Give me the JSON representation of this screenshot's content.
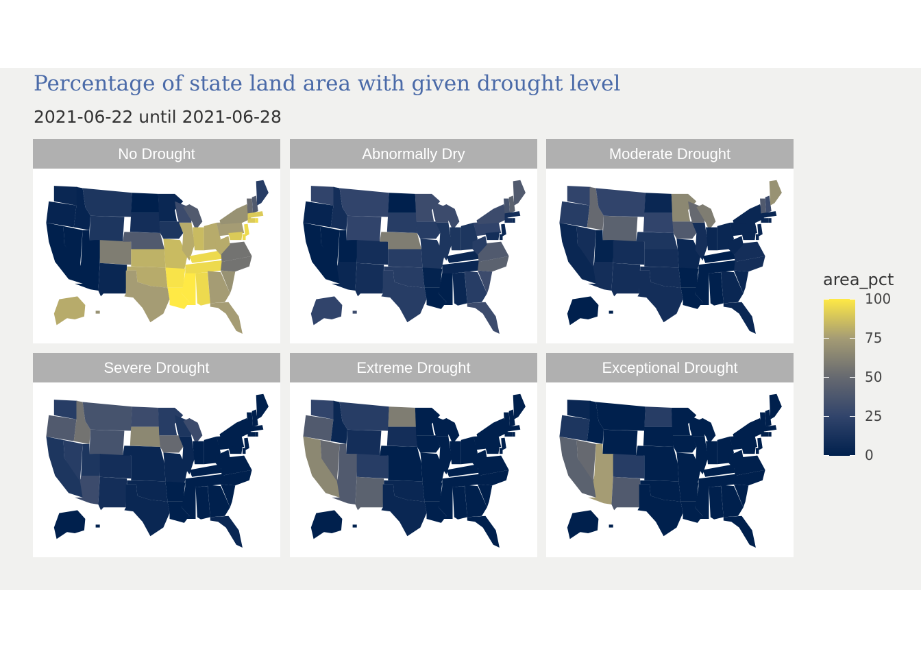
{
  "title": "Percentage of state land area with given drought level",
  "subtitle": "2021-06-22 until 2021-06-28",
  "legend": {
    "title": "area_pct",
    "ticks": [
      "100",
      "75",
      "50",
      "25",
      "0"
    ],
    "colors": [
      "#00204d",
      "#31446b",
      "#666970",
      "#a59c74",
      "#ffe945"
    ]
  },
  "facets": [
    {
      "label": "No Drought",
      "values": {
        "WA": 5,
        "OR": 3,
        "CA": 0,
        "NV": 0,
        "ID": 3,
        "MT": 15,
        "WY": 15,
        "UT": 0,
        "AZ": 0,
        "CO": 60,
        "NM": 5,
        "ND": 0,
        "SD": 10,
        "NE": 40,
        "KS": 82,
        "OK": 80,
        "TX": 75,
        "MN": 5,
        "IA": 15,
        "MO": 85,
        "AR": 98,
        "LA": 100,
        "WI": 30,
        "IL": 80,
        "MI": 40,
        "IN": 85,
        "OH": 80,
        "KY": 95,
        "TN": 95,
        "MS": 100,
        "AL": 95,
        "GA": 75,
        "FL": 75,
        "SC": 70,
        "NC": 55,
        "VA": 55,
        "WV": 80,
        "PA": 75,
        "NY": 70,
        "VT": 50,
        "NH": 40,
        "ME": 20,
        "MA": 90,
        "CT": 90,
        "RI": 95,
        "NJ": 95,
        "DE": 95,
        "MD": 90,
        "AK": 80,
        "HI": 70
      }
    },
    {
      "label": "Abnormally Dry",
      "values": {
        "WA": 25,
        "OR": 3,
        "CA": 0,
        "NV": 0,
        "ID": 10,
        "MT": 25,
        "WY": 25,
        "UT": 0,
        "AZ": 5,
        "CO": 10,
        "NM": 10,
        "ND": 0,
        "SD": 20,
        "NE": 60,
        "KS": 20,
        "OK": 20,
        "TX": 20,
        "MN": 30,
        "IA": 20,
        "MO": 15,
        "AR": 2,
        "LA": 0,
        "WI": 30,
        "IL": 15,
        "MI": 30,
        "IN": 15,
        "OH": 15,
        "KY": 5,
        "TN": 5,
        "MS": 0,
        "AL": 5,
        "GA": 20,
        "FL": 30,
        "SC": 30,
        "NC": 45,
        "VA": 40,
        "WV": 20,
        "PA": 25,
        "NY": 30,
        "VT": 35,
        "NH": 45,
        "ME": 40,
        "MA": 10,
        "CT": 10,
        "RI": 5,
        "NJ": 5,
        "DE": 5,
        "MD": 10,
        "AK": 25,
        "HI": 30
      }
    },
    {
      "label": "Moderate Drought",
      "values": {
        "WA": 25,
        "OR": 20,
        "CA": 5,
        "NV": 10,
        "ID": 50,
        "MT": 25,
        "WY": 45,
        "UT": 2,
        "AZ": 10,
        "CO": 10,
        "NM": 10,
        "ND": 5,
        "SD": 25,
        "NE": 15,
        "KS": 10,
        "OK": 10,
        "TX": 10,
        "MN": 65,
        "IA": 40,
        "MO": 5,
        "AR": 0,
        "LA": 0,
        "WI": 50,
        "IL": 10,
        "MI": 60,
        "IN": 5,
        "OH": 5,
        "KY": 0,
        "TN": 0,
        "MS": 0,
        "AL": 0,
        "GA": 5,
        "FL": 5,
        "SC": 5,
        "NC": 10,
        "VA": 10,
        "WV": 5,
        "PA": 5,
        "NY": 5,
        "VT": 40,
        "NH": 30,
        "ME": 70,
        "MA": 5,
        "CT": 5,
        "RI": 5,
        "NJ": 5,
        "DE": 5,
        "MD": 5,
        "AK": 0,
        "HI": 0
      }
    },
    {
      "label": "Severe Drought",
      "values": {
        "WA": 20,
        "OR": 40,
        "CA": 15,
        "NV": 20,
        "ID": 55,
        "MT": 35,
        "WY": 35,
        "UT": 15,
        "AZ": 30,
        "CO": 10,
        "NM": 10,
        "ND": 30,
        "SD": 65,
        "NE": 5,
        "KS": 5,
        "OK": 5,
        "TX": 5,
        "MN": 20,
        "IA": 50,
        "MO": 5,
        "AR": 0,
        "LA": 0,
        "WI": 15,
        "IL": 5,
        "MI": 30,
        "IN": 0,
        "OH": 0,
        "KY": 0,
        "TN": 0,
        "MS": 0,
        "AL": 0,
        "GA": 0,
        "FL": 5,
        "SC": 0,
        "NC": 0,
        "VA": 0,
        "WV": 0,
        "PA": 0,
        "NY": 0,
        "VT": 0,
        "NH": 0,
        "ME": 0,
        "MA": 0,
        "CT": 0,
        "RI": 0,
        "NJ": 0,
        "DE": 0,
        "MD": 0,
        "AK": 0,
        "HI": 0
      }
    },
    {
      "label": "Extreme Drought",
      "values": {
        "WA": 25,
        "OR": 40,
        "CA": 65,
        "NV": 50,
        "ID": 5,
        "MT": 20,
        "WY": 10,
        "UT": 40,
        "AZ": 40,
        "CO": 20,
        "NM": 45,
        "ND": 60,
        "SD": 10,
        "NE": 0,
        "KS": 0,
        "OK": 5,
        "TX": 5,
        "MN": 0,
        "IA": 0,
        "MO": 0,
        "AR": 0,
        "LA": 0,
        "WI": 0,
        "IL": 0,
        "MI": 0,
        "IN": 0,
        "OH": 0,
        "KY": 0,
        "TN": 0,
        "MS": 0,
        "AL": 0,
        "GA": 0,
        "FL": 0,
        "SC": 0,
        "NC": 0,
        "VA": 0,
        "WV": 0,
        "PA": 0,
        "NY": 0,
        "VT": 0,
        "NH": 0,
        "ME": 0,
        "MA": 0,
        "CT": 0,
        "RI": 0,
        "NJ": 0,
        "DE": 0,
        "MD": 0,
        "AK": 0,
        "HI": 0
      }
    },
    {
      "label": "Exceptional Drought",
      "values": {
        "WA": 5,
        "OR": 15,
        "CA": 45,
        "NV": 50,
        "ID": 0,
        "MT": 0,
        "WY": 0,
        "UT": 75,
        "AZ": 75,
        "CO": 20,
        "NM": 40,
        "ND": 20,
        "SD": 0,
        "NE": 0,
        "KS": 0,
        "OK": 0,
        "TX": 0,
        "MN": 0,
        "IA": 0,
        "MO": 0,
        "AR": 0,
        "LA": 0,
        "WI": 0,
        "IL": 0,
        "MI": 0,
        "IN": 0,
        "OH": 0,
        "KY": 0,
        "TN": 0,
        "MS": 0,
        "AL": 0,
        "GA": 0,
        "FL": 0,
        "SC": 0,
        "NC": 0,
        "VA": 0,
        "WV": 0,
        "PA": 0,
        "NY": 0,
        "VT": 0,
        "NH": 0,
        "ME": 0,
        "MA": 0,
        "CT": 0,
        "RI": 0,
        "NJ": 0,
        "DE": 0,
        "MD": 0,
        "AK": 0,
        "HI": 0
      }
    }
  ]
}
